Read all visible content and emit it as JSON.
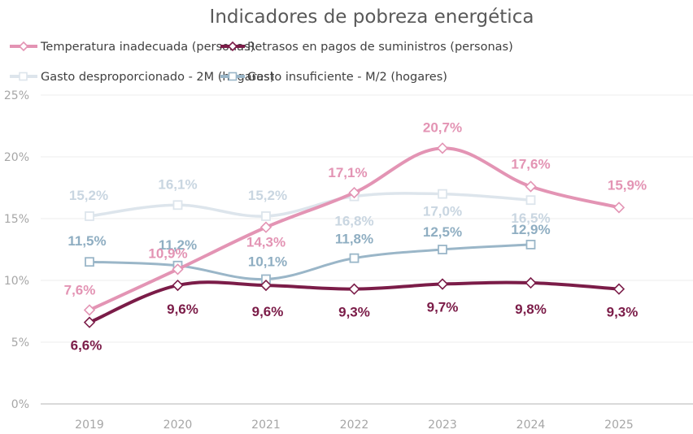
{
  "chart_data": {
    "type": "line",
    "title": "Indicadores de pobreza energética",
    "xlabel": "",
    "ylabel": "",
    "categories": [
      "2019",
      "2020",
      "2021",
      "2022",
      "2023",
      "2024",
      "2025"
    ],
    "ylim": [
      0,
      25
    ],
    "yticks": [
      0,
      5,
      10,
      15,
      20,
      25
    ],
    "ytick_labels": [
      "0%",
      "5%",
      "10%",
      "15%",
      "20%",
      "25%"
    ],
    "grid": true,
    "smooth": true,
    "legend_position": "top",
    "series": [
      {
        "name": "Temperatura inadecuada (personas)",
        "color": "#E394B4",
        "marker": "diamond",
        "values": [
          7.6,
          10.9,
          14.3,
          17.1,
          20.7,
          17.6,
          15.9
        ],
        "labels": [
          "7,6%",
          "10,9%",
          "14,3%",
          "17,1%",
          "20,7%",
          "17,6%",
          "15,9%"
        ]
      },
      {
        "name": "Retrasos en pagos de suministros (personas)",
        "color": "#7B1C48",
        "marker": "diamond",
        "values": [
          6.6,
          9.6,
          9.6,
          9.3,
          9.7,
          9.8,
          9.3
        ],
        "labels": [
          "6,6%",
          "9,6%",
          "9,6%",
          "9,3%",
          "9,7%",
          "9,8%",
          "9,3%"
        ]
      },
      {
        "name": "Gasto desproporcionado - 2M (hogares)",
        "color": "#DDE5EC",
        "label_color": "#C9D6E1",
        "marker": "square",
        "values": [
          15.2,
          16.1,
          15.2,
          16.8,
          17.0,
          16.5,
          null
        ],
        "labels": [
          "15,2%",
          "16,1%",
          "15,2%",
          "16,8%",
          "17,0%",
          "16,5%",
          null
        ]
      },
      {
        "name": "Gasto insuficiente - M/2 (hogares)",
        "color": "#9AB6C8",
        "label_color": "#8FAEC2",
        "marker": "square",
        "values": [
          11.5,
          11.2,
          10.1,
          11.8,
          12.5,
          12.9,
          null
        ],
        "labels": [
          "11,5%",
          "11,2%",
          "10,1%",
          "11,8%",
          "12,5%",
          "12,9%",
          null
        ]
      }
    ]
  }
}
